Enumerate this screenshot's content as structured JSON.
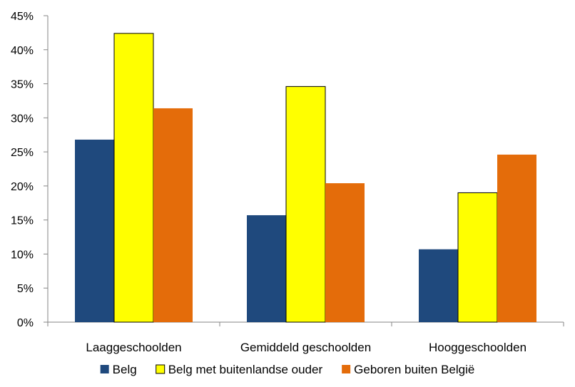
{
  "chart_data": {
    "type": "bar",
    "title": "",
    "xlabel": "",
    "ylabel": "",
    "ylim": [
      0,
      45
    ],
    "y_tick_step": 5,
    "y_tick_format": "percent",
    "y_tick_labels": [
      "0%",
      "5%",
      "10%",
      "15%",
      "20%",
      "25%",
      "30%",
      "35%",
      "40%",
      "45%"
    ],
    "grid": false,
    "legend_position": "bottom",
    "categories": [
      "Laaggeschoolden",
      "Gemiddeld geschoolden",
      "Hooggeschoolden"
    ],
    "series": [
      {
        "name": "Belg",
        "color": "#1f497d",
        "values": [
          26.8,
          15.7,
          10.7
        ]
      },
      {
        "name": "Belg met buitenlandse ouder",
        "color": "#ffff00",
        "values": [
          42.4,
          34.6,
          19.0
        ]
      },
      {
        "name": "Geboren buiten België",
        "color": "#e46c0a",
        "values": [
          31.4,
          20.4,
          24.6
        ]
      }
    ]
  }
}
